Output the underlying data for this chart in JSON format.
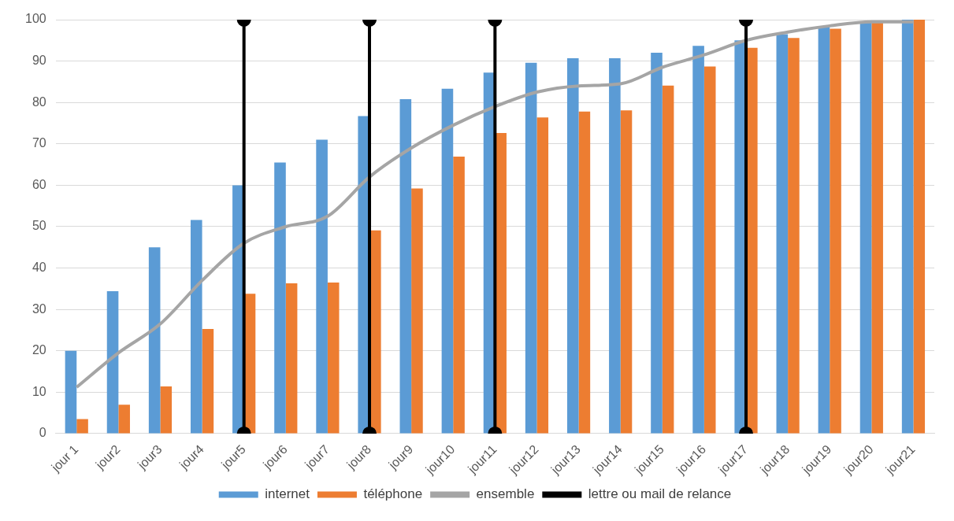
{
  "chart_data": {
    "type": "bar",
    "categories": [
      "jour 1",
      "jour2",
      "jour3",
      "jour4",
      "jour5",
      "jour6",
      "jour7",
      "jour8",
      "jour9",
      "jour10",
      "jour11",
      "jour12",
      "jour13",
      "jour14",
      "jour15",
      "jour16",
      "jour17",
      "jour18",
      "jour19",
      "jour20",
      "jour21"
    ],
    "series": [
      {
        "name": "internet",
        "color": "#5b9bd5",
        "values": [
          20,
          34.4,
          45,
          51.6,
          60,
          65.5,
          71,
          76.7,
          80.8,
          83.3,
          87.2,
          89.6,
          90.7,
          90.7,
          92,
          93.7,
          95,
          96.5,
          98.3,
          99.5,
          100
        ]
      },
      {
        "name": "téléphone",
        "color": "#ed7d31",
        "values": [
          3.5,
          7,
          11.4,
          25.3,
          33.8,
          36.3,
          36.5,
          49.1,
          59.2,
          66.9,
          72.6,
          76.4,
          77.8,
          78.1,
          84.1,
          88.7,
          93.2,
          95.6,
          97.8,
          99.3,
          100
        ]
      },
      {
        "name": "ensemble",
        "type": "line",
        "color": "#a5a5a5",
        "marker": "none",
        "values": [
          11.2,
          19.5,
          26.5,
          37,
          46,
          50,
          52.5,
          62,
          69,
          74.5,
          79,
          82.5,
          84,
          84.5,
          88.5,
          91.5,
          95,
          97,
          98.5,
          99.5,
          99.5
        ]
      },
      {
        "name": "lettre ou mail de relance",
        "type": "line",
        "color": "#000000",
        "marker": "circle",
        "x": [
          "jour5",
          "jour5",
          "jour5",
          "jour8",
          "jour8",
          "jour8",
          "jour11",
          "jour11",
          "jour11",
          "jour17",
          "jour17"
        ],
        "values": [
          0,
          100,
          null,
          0,
          100,
          null,
          0,
          100,
          null,
          0,
          100
        ]
      }
    ],
    "ylim": [
      0,
      100
    ],
    "yticks": [
      0,
      10,
      20,
      30,
      40,
      50,
      60,
      70,
      80,
      90,
      100
    ],
    "grid": "y",
    "legend": "bottom"
  }
}
